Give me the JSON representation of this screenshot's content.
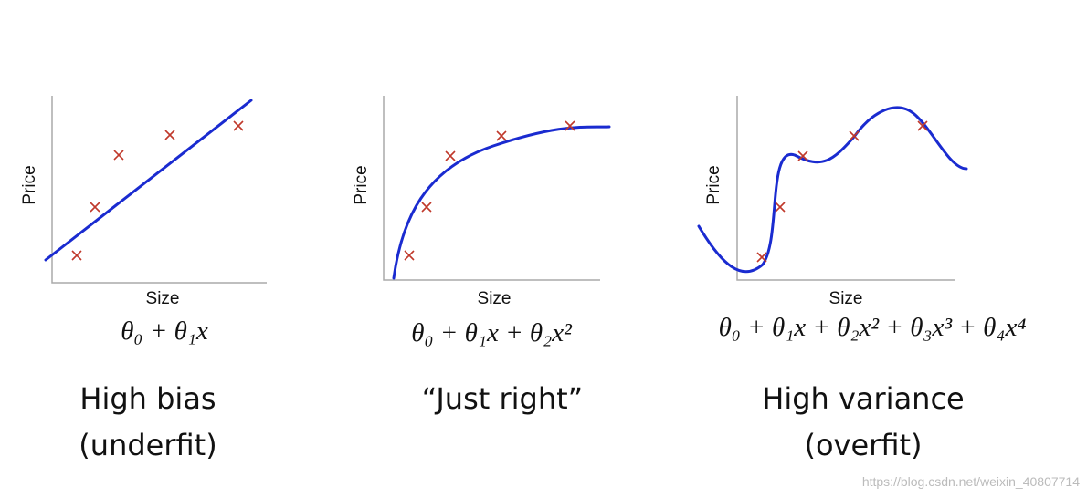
{
  "panels": [
    {
      "y_label": "Price",
      "x_label": "Size",
      "formula": "θ₀ + θ₁x",
      "caption": [
        "High bias",
        "(underfit)"
      ]
    },
    {
      "y_label": "Price",
      "x_label": "Size",
      "formula": "θ₀ + θ₁x + θ₂x²",
      "caption": [
        "“Just right”"
      ]
    },
    {
      "y_label": "Price",
      "x_label": "Size",
      "formula": "θ₀ + θ₁x + θ₂x² + θ₃x³ + θ₄x⁴",
      "caption": [
        "High variance",
        "(overfit)"
      ]
    }
  ],
  "watermark": "https://blog.csdn.net/weixin_40807714"
}
